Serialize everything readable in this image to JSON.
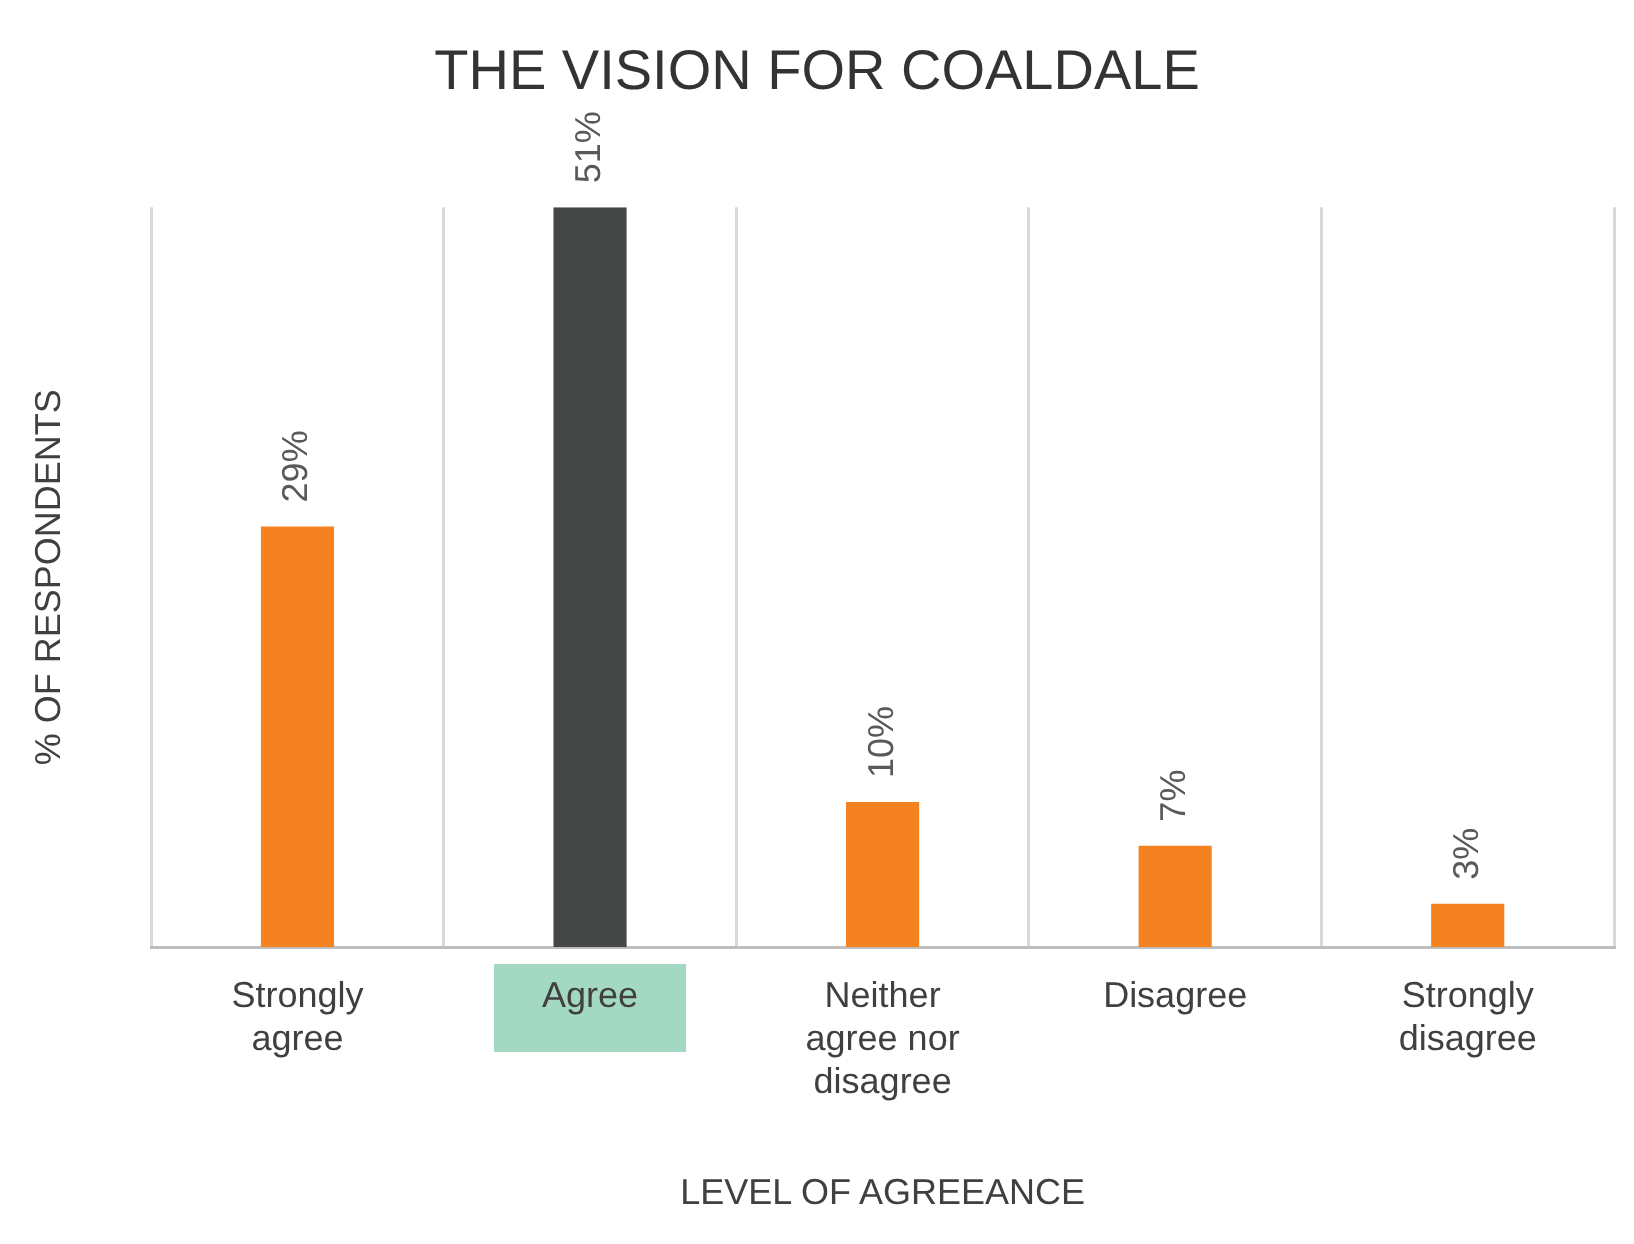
{
  "chart_data": {
    "type": "bar",
    "title": "THE VISION FOR COALDALE",
    "xlabel": "LEVEL OF AGREEANCE",
    "ylabel": "% OF RESPONDENTS",
    "categories": [
      "Strongly agree",
      "Agree",
      "Neither agree nor disagree",
      "Disagree",
      "Strongly disagree"
    ],
    "values": [
      29,
      51,
      10,
      7,
      3
    ],
    "colors": [
      "#f58220",
      "#444746",
      "#f58220",
      "#f58220",
      "#f58220"
    ],
    "value_labels": [
      "29%",
      "51%",
      "10%",
      "7%",
      "3%"
    ],
    "ylim": [
      0,
      51
    ],
    "grid": "x",
    "legend": false,
    "tick_labels": "x"
  }
}
